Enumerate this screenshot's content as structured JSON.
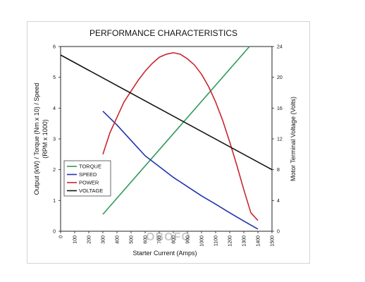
{
  "chart_data": {
    "type": "line",
    "title": "PERFORMANCE CHARACTERISTICS",
    "xlabel": "Starter Current (Amps)",
    "ylabel_left_lines": [
      "Output (kW) / Torque (Nm x 10) / Speed",
      "(RPM x 1000)"
    ],
    "ylabel_right": "Motor Terminal Voltage (Volts)",
    "xlim": [
      0,
      1500
    ],
    "ylim_left": [
      0,
      6
    ],
    "ylim_right": [
      0,
      24
    ],
    "x_ticks": [
      "0",
      "100",
      "200",
      "300",
      "400",
      "500",
      "600",
      "700",
      "800",
      "900",
      "1000",
      "1100",
      "1200",
      "1300",
      "1400",
      "1500"
    ],
    "y_left_ticks": [
      "0",
      "1",
      "2",
      "3",
      "4",
      "5",
      "6"
    ],
    "y_right_ticks": [
      "0",
      "4",
      "8",
      "12",
      "16",
      "20",
      "24"
    ],
    "grid": false,
    "legend_position": "left-middle",
    "series": [
      {
        "name": "TORQUE",
        "color": "#2e9a5a",
        "axis": "left",
        "x": [
          300,
          1340
        ],
        "y": [
          0.55,
          6.0
        ]
      },
      {
        "name": "SPEED",
        "color": "#1f33b0",
        "axis": "left",
        "x": [
          300,
          400,
          500,
          600,
          700,
          800,
          900,
          1000,
          1100,
          1200,
          1300,
          1400
        ],
        "y": [
          3.9,
          3.45,
          2.95,
          2.45,
          2.1,
          1.75,
          1.45,
          1.15,
          0.88,
          0.6,
          0.33,
          0.07
        ]
      },
      {
        "name": "POWER",
        "color": "#c8262e",
        "axis": "left",
        "x": [
          300,
          350,
          400,
          450,
          500,
          550,
          600,
          650,
          700,
          750,
          800,
          850,
          900,
          950,
          1000,
          1050,
          1100,
          1150,
          1200,
          1250,
          1300,
          1350,
          1400
        ],
        "y": [
          2.5,
          3.2,
          3.7,
          4.2,
          4.55,
          4.9,
          5.2,
          5.45,
          5.65,
          5.75,
          5.8,
          5.75,
          5.6,
          5.4,
          5.1,
          4.7,
          4.2,
          3.6,
          2.9,
          2.15,
          1.35,
          0.6,
          0.35
        ]
      },
      {
        "name": "VOLTAGE",
        "color": "#111111",
        "axis": "right",
        "x": [
          0,
          1500
        ],
        "y": [
          22.9,
          8.0
        ]
      }
    ],
    "watermark": "OBOFO"
  }
}
